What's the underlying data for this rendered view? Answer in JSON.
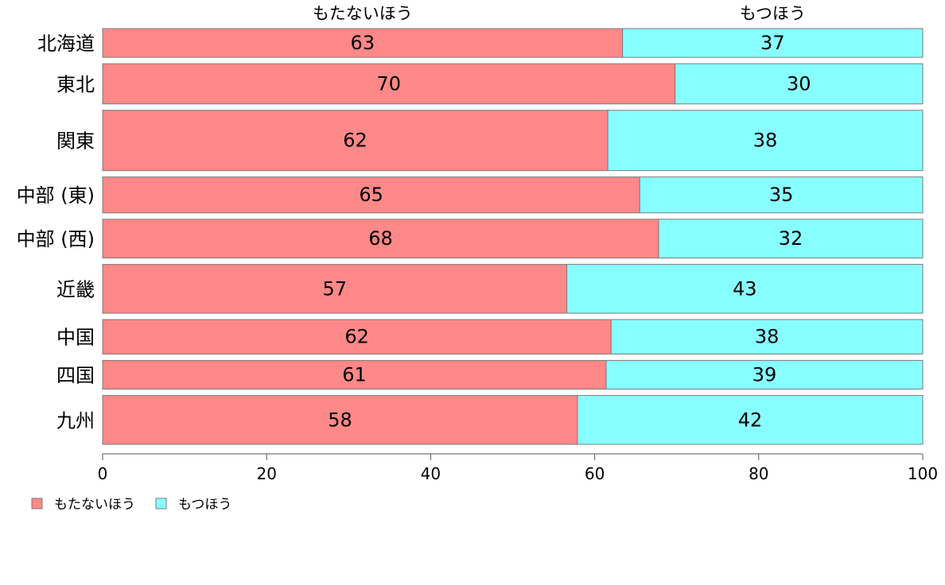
{
  "chart_data": {
    "type": "bar",
    "orientation": "horizontal",
    "stacked": true,
    "categories": [
      "北海道",
      "東北",
      "関東",
      "中部 (東)",
      "中部 (西)",
      "近畿",
      "中国",
      "四国",
      "九州"
    ],
    "series": [
      {
        "name": "もたないほう",
        "color": "#ff8888",
        "values": [
          63.4,
          69.8,
          61.6,
          65.5,
          67.8,
          56.6,
          62.0,
          61.4,
          57.9
        ],
        "labels": [
          "63",
          "70",
          "62",
          "65",
          "68",
          "57",
          "62",
          "61",
          "58"
        ]
      },
      {
        "name": "もつほう",
        "color": "#88ffff",
        "values": [
          36.6,
          30.2,
          38.4,
          34.5,
          32.2,
          43.4,
          38.0,
          38.6,
          42.1
        ],
        "labels": [
          "37",
          "30",
          "38",
          "35",
          "32",
          "43",
          "38",
          "39",
          "42"
        ]
      }
    ],
    "bar_weights": [
      1.0,
      1.4,
      2.1,
      1.25,
      1.35,
      1.7,
      1.2,
      1.0,
      1.7
    ],
    "top_labels": [
      "もたないほう",
      "もつほう"
    ],
    "xlim": [
      0,
      100
    ],
    "xticks": [
      0,
      20,
      40,
      60,
      80,
      100
    ],
    "xlabel": "",
    "ylabel": "",
    "legend": {
      "position": "bottom-left",
      "entries": [
        "もたないほう",
        "もつほう"
      ]
    },
    "grid": false
  }
}
